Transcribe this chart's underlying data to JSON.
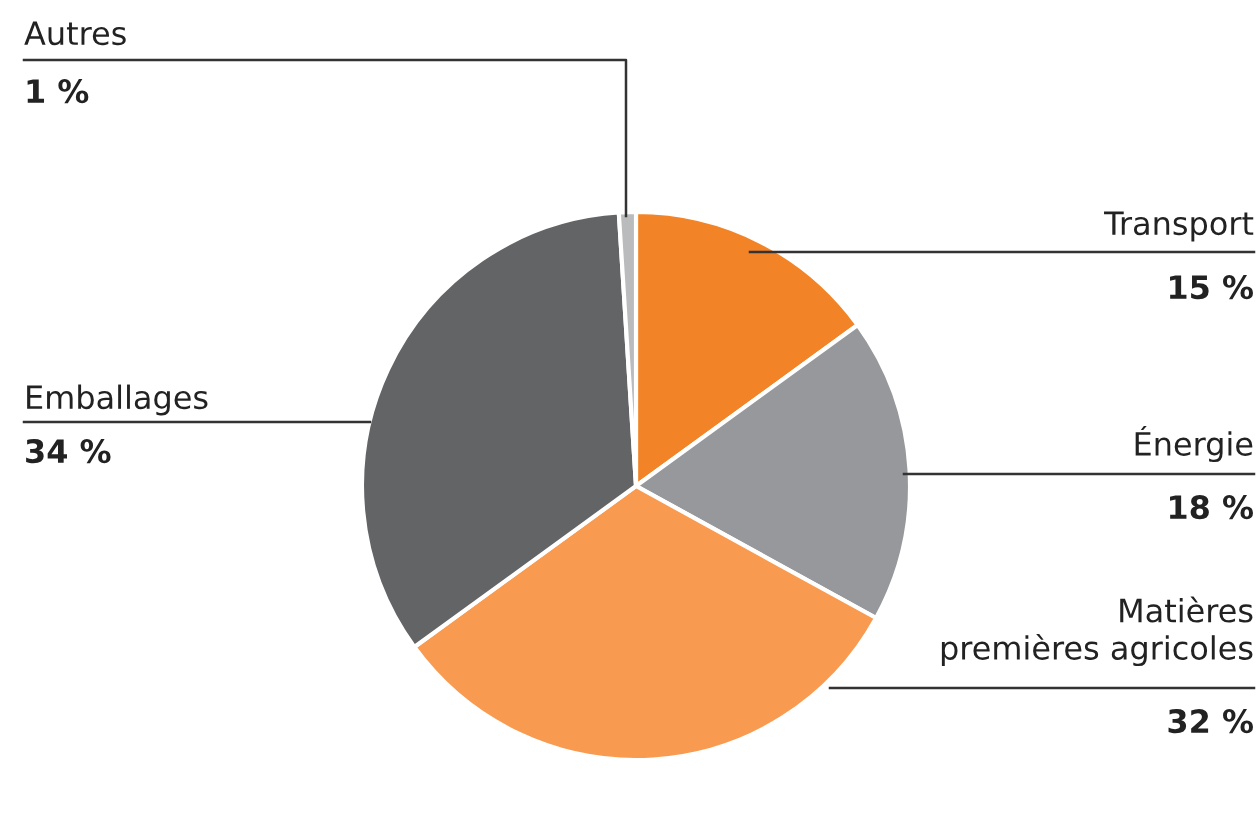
{
  "chart_data": {
    "type": "pie",
    "categories": [
      "Transport",
      "Énergie",
      "Matières\npremières agricoles",
      "Emballages",
      "Autres"
    ],
    "values": [
      15,
      18,
      32,
      34,
      1
    ],
    "value_labels": [
      "15 %",
      "18 %",
      "32 %",
      "34 %",
      "1 %"
    ],
    "colors": [
      "#f28427",
      "#97989b",
      "#f89a50",
      "#636466",
      "#b9bbbd"
    ],
    "legend": false
  }
}
